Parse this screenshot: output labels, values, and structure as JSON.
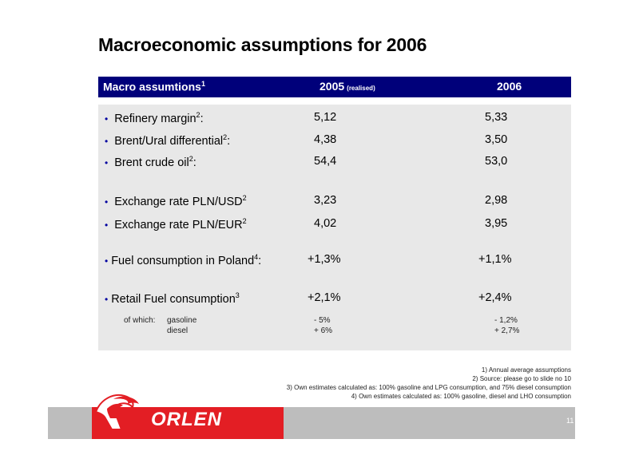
{
  "title": "Macroeconomic assumptions for 2006",
  "header": {
    "label": "Macro assumtions",
    "label_sup": "1",
    "col_2005": "2005",
    "col_2005_note": "(realised)",
    "col_2006": "2006"
  },
  "rows": [
    {
      "label": "Refinery margin",
      "sup": "2",
      "suffix": ":",
      "v2005": "5,12",
      "v2006": "5,33"
    },
    {
      "label": "Brent/Ural differential",
      "sup": "2",
      "suffix": ":",
      "v2005": "4,38",
      "v2006": "3,50"
    },
    {
      "label": "Brent crude oil",
      "sup": "2",
      "suffix": ":",
      "v2005": "54,4",
      "v2006": "53,0"
    },
    {
      "label": "Exchange rate PLN/USD",
      "sup": "2",
      "suffix": "",
      "v2005": "3,23",
      "v2006": "2,98"
    },
    {
      "label": "Exchange rate PLN/EUR",
      "sup": "2",
      "suffix": "",
      "v2005": "4,02",
      "v2006": "3,95"
    },
    {
      "label": "Fuel consumption in Poland",
      "sup": "4",
      "suffix": ":",
      "v2005": "+1,3%",
      "v2006": "+1,1%"
    },
    {
      "label": "Retail Fuel consumption",
      "sup": "3",
      "suffix": "",
      "v2005": "+2,1%",
      "v2006": "+2,4%"
    }
  ],
  "which": {
    "prefix": "of which:",
    "items": [
      {
        "label": "gasoline",
        "v2005": "- 5%",
        "v2006": "- 1,2%"
      },
      {
        "label": "diesel",
        "v2005": "+ 6%",
        "v2006": "+ 2,7%"
      }
    ]
  },
  "footnotes": [
    "1) Annual average assumptions",
    "2) Source: please go to slide no 10",
    "3) Own estimates calculated as: 100% gasoline and LPG consumption, and 75% diesel consumption",
    "4) Own estimates calculated as: 100% gasoline, diesel and LHO consumption"
  ],
  "footer": {
    "brand": "ORLEN",
    "page": "11"
  },
  "colors": {
    "header_bg": "#00007a",
    "panel_bg": "#e8e8e8",
    "brand_red": "#e31e24",
    "footer_gray": "#bdbdbd"
  }
}
